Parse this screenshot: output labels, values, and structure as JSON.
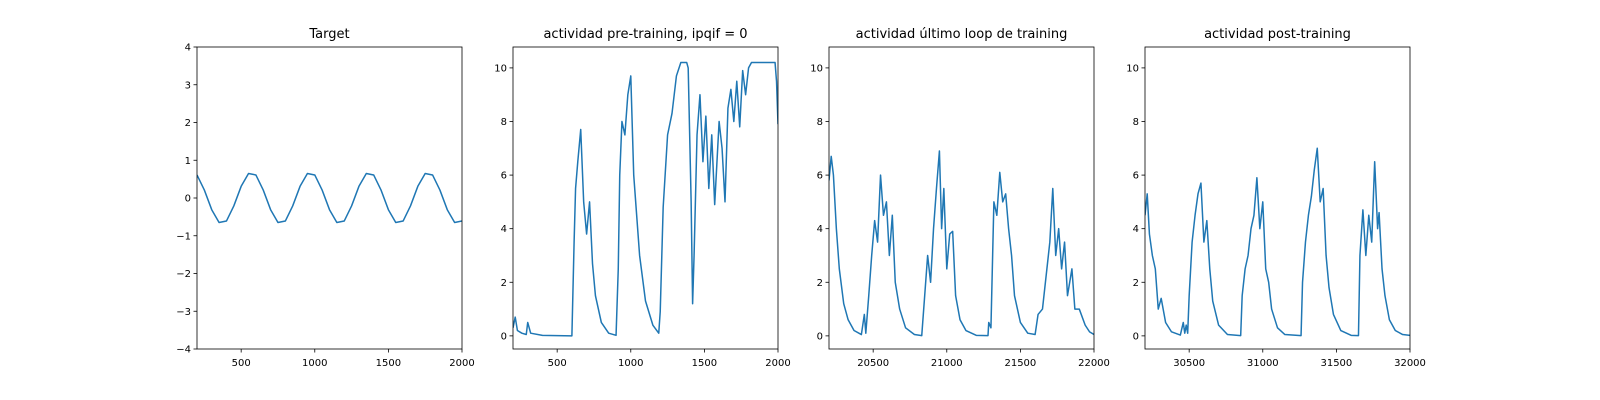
{
  "chart_data": [
    {
      "type": "line",
      "title": "Target",
      "color": "#1f77b4",
      "x": [
        200,
        250,
        300,
        350,
        400,
        450,
        500,
        550,
        600,
        650,
        700,
        750,
        800,
        850,
        900,
        950,
        1000,
        1050,
        1100,
        1150,
        1200,
        1250,
        1300,
        1350,
        1400,
        1450,
        1500,
        1550,
        1600,
        1650,
        1700,
        1750,
        1800,
        1850,
        1900,
        1950,
        2000
      ],
      "values": [
        0.61,
        0.21,
        -0.31,
        -0.65,
        -0.61,
        -0.21,
        0.31,
        0.65,
        0.61,
        0.21,
        -0.31,
        -0.65,
        -0.61,
        -0.21,
        0.31,
        0.65,
        0.61,
        0.21,
        -0.31,
        -0.65,
        -0.61,
        -0.21,
        0.31,
        0.65,
        0.61,
        0.21,
        -0.31,
        -0.65,
        -0.61,
        -0.21,
        0.31,
        0.65,
        0.61,
        0.21,
        -0.31,
        -0.65,
        -0.61
      ],
      "xlim": [
        200,
        2000
      ],
      "xticks": [
        500,
        1000,
        1500,
        2000
      ],
      "ylim": [
        -4,
        4
      ],
      "yticks": [
        {
          "value": -4,
          "label": "−4"
        },
        {
          "value": -3,
          "label": "−3"
        },
        {
          "value": -2,
          "label": "−2"
        },
        {
          "value": -1,
          "label": "−1"
        },
        0,
        1,
        2,
        3,
        4
      ]
    },
    {
      "type": "line",
      "title": "actividad pre-training, ipqif = 0",
      "color": "#1f77b4",
      "x": [
        200,
        215,
        230,
        260,
        290,
        300,
        320,
        400,
        500,
        600,
        615,
        625,
        640,
        660,
        680,
        700,
        720,
        740,
        760,
        800,
        850,
        900,
        915,
        925,
        940,
        960,
        980,
        1000,
        1020,
        1060,
        1100,
        1150,
        1190,
        1200,
        1220,
        1250,
        1280,
        1310,
        1340,
        1380,
        1390,
        1410,
        1420,
        1430,
        1450,
        1470,
        1490,
        1510,
        1530,
        1550,
        1570,
        1600,
        1620,
        1640,
        1660,
        1680,
        1700,
        1720,
        1740,
        1760,
        1780,
        1800,
        1820,
        1850,
        1900,
        1950,
        1980,
        1990,
        2000
      ],
      "values": [
        0.3,
        0.7,
        0.2,
        0.1,
        0.05,
        0.5,
        0.1,
        0.02,
        0.01,
        0.0,
        3.5,
        5.5,
        6.5,
        7.7,
        5.0,
        3.8,
        5.0,
        2.7,
        1.5,
        0.5,
        0.1,
        0.02,
        2.5,
        6.0,
        8.0,
        7.5,
        9.0,
        9.7,
        6.0,
        3.0,
        1.3,
        0.4,
        0.1,
        0.9,
        4.8,
        7.5,
        8.3,
        9.7,
        10.2,
        10.2,
        10.0,
        5.0,
        1.2,
        3.0,
        7.5,
        9.0,
        6.5,
        8.2,
        5.5,
        7.5,
        4.9,
        8.0,
        7.0,
        5.0,
        8.5,
        9.2,
        8.0,
        9.5,
        7.8,
        9.9,
        9.0,
        10.0,
        10.2,
        10.2,
        10.2,
        10.2,
        10.2,
        9.5,
        7.9
      ],
      "xlim": [
        200,
        2000
      ],
      "xticks": [
        500,
        1000,
        1500,
        2000
      ],
      "ylim": [
        -0.49,
        10.78
      ],
      "yticks": [
        0,
        2,
        4,
        6,
        8,
        10
      ]
    },
    {
      "type": "line",
      "title": "actividad último loop de training",
      "color": "#1f77b4",
      "x": [
        20200,
        20215,
        20230,
        20250,
        20270,
        20300,
        20330,
        20370,
        20420,
        20440,
        20450,
        20470,
        20490,
        20510,
        20530,
        20550,
        20570,
        20590,
        20610,
        20630,
        20650,
        20680,
        20720,
        20780,
        20830,
        20850,
        20870,
        20890,
        20910,
        20930,
        20950,
        20965,
        20980,
        21000,
        21020,
        21040,
        21060,
        21090,
        21130,
        21200,
        21280,
        21285,
        21300,
        21320,
        21340,
        21360,
        21380,
        21400,
        21420,
        21440,
        21460,
        21500,
        21550,
        21600,
        21620,
        21650,
        21680,
        21700,
        21720,
        21740,
        21760,
        21780,
        21800,
        21820,
        21850,
        21870,
        21900,
        21940,
        21970,
        22000
      ],
      "values": [
        5.8,
        6.7,
        6.0,
        4.0,
        2.5,
        1.2,
        0.6,
        0.2,
        0.05,
        0.8,
        0.1,
        1.5,
        3.0,
        4.3,
        3.5,
        6.0,
        4.5,
        5.0,
        3.0,
        4.5,
        2.0,
        1.0,
        0.3,
        0.05,
        0.01,
        1.5,
        3.0,
        2.0,
        4.0,
        5.5,
        6.9,
        4.0,
        5.5,
        2.5,
        3.8,
        3.9,
        1.5,
        0.6,
        0.2,
        0.02,
        0.01,
        0.5,
        0.3,
        5.0,
        4.5,
        6.1,
        5.0,
        5.3,
        4.0,
        3.0,
        1.5,
        0.5,
        0.1,
        0.05,
        0.8,
        1.0,
        2.5,
        3.5,
        5.5,
        3.0,
        4.0,
        2.5,
        3.5,
        1.5,
        2.5,
        1.0,
        1.0,
        0.4,
        0.15,
        0.05
      ],
      "xlim": [
        20200,
        22000
      ],
      "xticks": [
        20500,
        21000,
        21500,
        22000
      ],
      "ylim": [
        -0.49,
        10.78
      ],
      "yticks": [
        0,
        2,
        4,
        6,
        8,
        10
      ]
    },
    {
      "type": "line",
      "title": "actividad post-training",
      "color": "#1f77b4",
      "x": [
        30200,
        30215,
        30230,
        30250,
        30270,
        30290,
        30310,
        30340,
        30380,
        30440,
        30460,
        30470,
        30480,
        30490,
        30500,
        30520,
        30540,
        30560,
        30580,
        30600,
        30620,
        30640,
        30660,
        30700,
        30760,
        30850,
        30860,
        30880,
        30900,
        30920,
        30940,
        30960,
        30980,
        31000,
        31020,
        31040,
        31060,
        31100,
        31150,
        31260,
        31270,
        31290,
        31310,
        31330,
        31350,
        31370,
        31390,
        31410,
        31430,
        31450,
        31480,
        31530,
        31600,
        31650,
        31660,
        31680,
        31700,
        31720,
        31740,
        31760,
        31780,
        31790,
        31810,
        31830,
        31860,
        31900,
        31950,
        32000
      ],
      "values": [
        4.5,
        5.3,
        3.8,
        3.0,
        2.5,
        1.0,
        1.4,
        0.5,
        0.15,
        0.03,
        0.5,
        0.1,
        0.4,
        0.1,
        1.5,
        3.5,
        4.5,
        5.3,
        5.7,
        3.5,
        4.3,
        2.5,
        1.3,
        0.4,
        0.05,
        0.01,
        1.5,
        2.5,
        3.0,
        4.0,
        4.5,
        5.9,
        4.0,
        5.0,
        2.5,
        2.0,
        1.0,
        0.3,
        0.05,
        0.01,
        2.0,
        3.5,
        4.5,
        5.2,
        6.2,
        7.0,
        5.0,
        5.5,
        3.0,
        1.8,
        0.8,
        0.2,
        0.02,
        0.01,
        3.0,
        4.7,
        3.0,
        4.5,
        3.5,
        6.5,
        4.0,
        4.6,
        2.5,
        1.5,
        0.6,
        0.2,
        0.05,
        0.02
      ],
      "xlim": [
        30200,
        32000
      ],
      "xticks": [
        30500,
        31000,
        31500,
        32000
      ],
      "ylim": [
        -0.49,
        10.78
      ],
      "yticks": [
        0,
        2,
        4,
        6,
        8,
        10
      ]
    }
  ]
}
